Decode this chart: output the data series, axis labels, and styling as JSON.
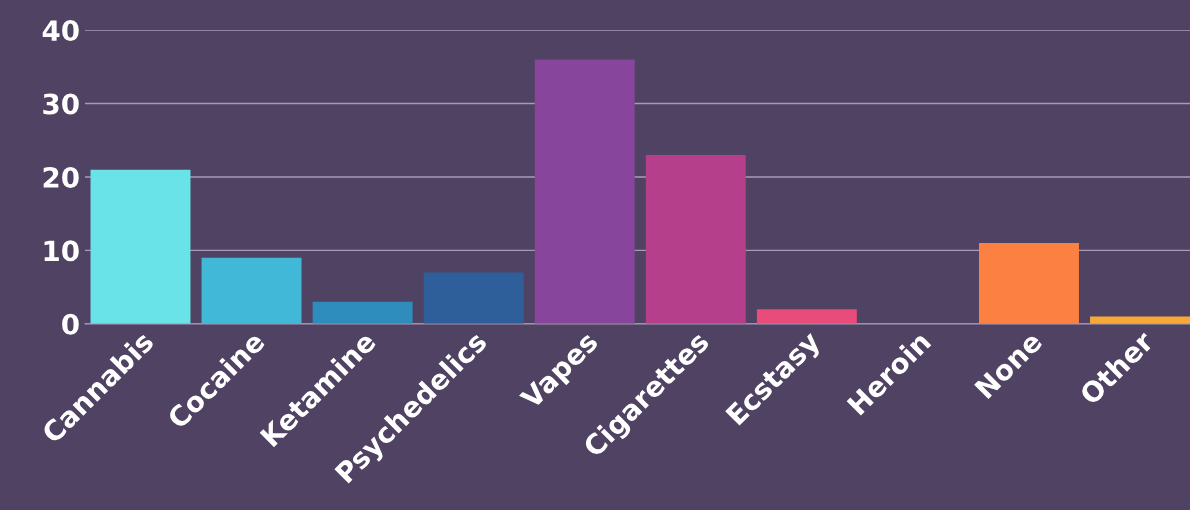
{
  "chart_data": {
    "type": "bar",
    "categories": [
      "Cannabis",
      "Cocaine",
      "Ketamine",
      "Psychedelics",
      "Vapes",
      "Cigarettes",
      "Ecstasy",
      "Heroin",
      "None",
      "Other"
    ],
    "values": [
      21,
      9,
      3,
      7,
      36,
      23,
      2,
      0,
      11,
      1
    ],
    "colors": [
      "#6ae3e8",
      "#42b8d8",
      "#2e8dbd",
      "#2e5f9a",
      "#87469b",
      "#b53f8a",
      "#e84c7a",
      "#f66a5f",
      "#fd8043",
      "#f6a935"
    ],
    "ylim": [
      0,
      40
    ],
    "yticks": [
      0,
      10,
      20,
      30,
      40
    ],
    "grid": "y",
    "legend": false
  }
}
